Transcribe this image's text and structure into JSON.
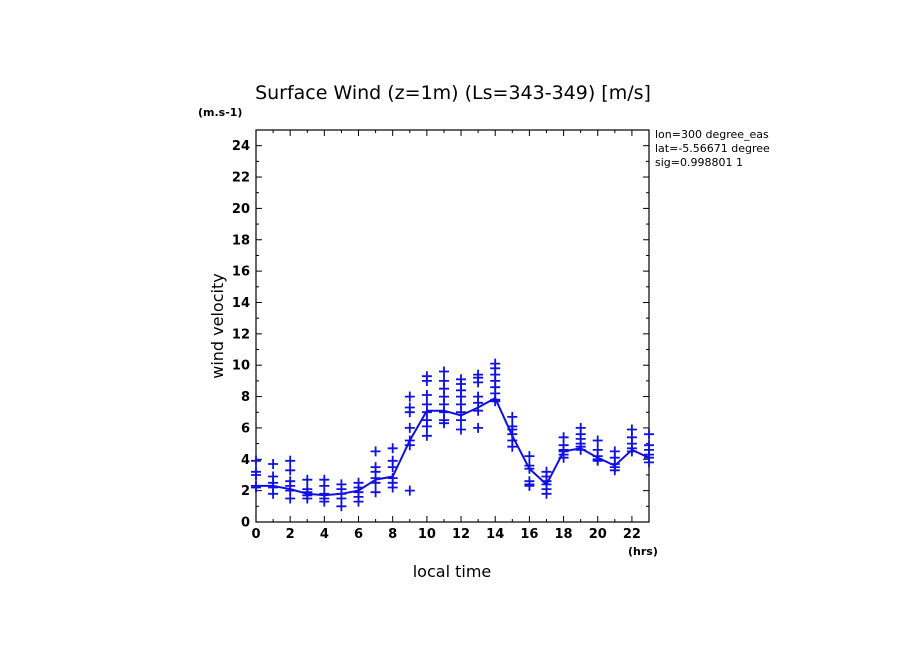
{
  "chart_data": {
    "type": "scatter",
    "title": "Surface Wind (z=1m) (Ls=343-349) [m/s]",
    "ylabel": "wind velocity",
    "y_unit": "(m.s-1)",
    "xlabel": "local time",
    "x_unit": "(hrs)",
    "xlim": [
      0,
      23
    ],
    "ylim": [
      0,
      25
    ],
    "x_ticks": [
      0,
      2,
      4,
      6,
      8,
      10,
      12,
      14,
      16,
      18,
      20,
      22
    ],
    "y_ticks": [
      0,
      2,
      4,
      6,
      8,
      10,
      12,
      14,
      16,
      18,
      20,
      22,
      24
    ],
    "grid": false,
    "annotations": [
      "lon=300 degree_eas",
      "lat=-5.56671 degree",
      "sig=0.998801 1"
    ],
    "color": "#1010e0",
    "series": [
      {
        "style": "line",
        "x": [
          0,
          1,
          2,
          3,
          4,
          5,
          6,
          7,
          8,
          9,
          10,
          11,
          12,
          13,
          14,
          15,
          16,
          17,
          18,
          19,
          20,
          21,
          22,
          23
        ],
        "values": [
          2.3,
          2.3,
          2.1,
          1.8,
          1.7,
          1.8,
          2.0,
          2.7,
          2.9,
          5.2,
          7.1,
          7.1,
          6.8,
          7.3,
          7.9,
          5.5,
          3.4,
          2.4,
          4.5,
          4.7,
          4.1,
          3.6,
          4.6,
          4.1
        ]
      },
      {
        "style": "markers",
        "marker": "+",
        "points": [
          [
            0,
            3.9
          ],
          [
            0,
            3.2
          ],
          [
            0,
            3.0
          ],
          [
            0,
            2.3
          ],
          [
            0,
            2.2
          ],
          [
            1,
            3.7
          ],
          [
            1,
            2.9
          ],
          [
            1,
            2.5
          ],
          [
            1,
            2.2
          ],
          [
            1,
            1.8
          ],
          [
            2,
            3.9
          ],
          [
            2,
            3.3
          ],
          [
            2,
            2.6
          ],
          [
            2,
            2.3
          ],
          [
            2,
            2.0
          ],
          [
            2,
            1.5
          ],
          [
            3,
            2.7
          ],
          [
            3,
            2.1
          ],
          [
            3,
            1.9
          ],
          [
            3,
            1.7
          ],
          [
            3,
            1.5
          ],
          [
            4,
            2.7
          ],
          [
            4,
            2.3
          ],
          [
            4,
            1.8
          ],
          [
            4,
            1.5
          ],
          [
            4,
            1.3
          ],
          [
            5,
            2.4
          ],
          [
            5,
            2.1
          ],
          [
            5,
            1.8
          ],
          [
            5,
            1.5
          ],
          [
            5,
            1.0
          ],
          [
            6,
            2.5
          ],
          [
            6,
            2.2
          ],
          [
            6,
            1.9
          ],
          [
            6,
            1.6
          ],
          [
            6,
            1.3
          ],
          [
            7,
            4.5
          ],
          [
            7,
            3.5
          ],
          [
            7,
            3.2
          ],
          [
            7,
            2.8
          ],
          [
            7,
            2.5
          ],
          [
            7,
            1.9
          ],
          [
            8,
            4.7
          ],
          [
            8,
            3.9
          ],
          [
            8,
            3.5
          ],
          [
            8,
            2.8
          ],
          [
            8,
            2.5
          ],
          [
            8,
            2.2
          ],
          [
            9,
            8.0
          ],
          [
            9,
            7.3
          ],
          [
            9,
            7.0
          ],
          [
            9,
            6.0
          ],
          [
            9,
            5.2
          ],
          [
            9,
            4.9
          ],
          [
            9,
            2.0
          ],
          [
            10,
            9.3
          ],
          [
            10,
            9.0
          ],
          [
            10,
            8.1
          ],
          [
            10,
            7.5
          ],
          [
            10,
            7.0
          ],
          [
            10,
            6.5
          ],
          [
            10,
            6.1
          ],
          [
            10,
            5.5
          ],
          [
            11,
            9.6
          ],
          [
            11,
            9.0
          ],
          [
            11,
            8.5
          ],
          [
            11,
            8.0
          ],
          [
            11,
            7.5
          ],
          [
            11,
            7.0
          ],
          [
            11,
            6.5
          ],
          [
            11,
            6.3
          ],
          [
            12,
            9.1
          ],
          [
            12,
            8.8
          ],
          [
            12,
            8.4
          ],
          [
            12,
            8.0
          ],
          [
            12,
            7.5
          ],
          [
            12,
            7.0
          ],
          [
            12,
            6.5
          ],
          [
            12,
            5.9
          ],
          [
            13,
            9.4
          ],
          [
            13,
            9.2
          ],
          [
            13,
            8.9
          ],
          [
            13,
            8.0
          ],
          [
            13,
            7.6
          ],
          [
            13,
            7.1
          ],
          [
            13,
            6.0
          ],
          [
            14,
            10.1
          ],
          [
            14,
            9.8
          ],
          [
            14,
            9.4
          ],
          [
            14,
            9.0
          ],
          [
            14,
            8.6
          ],
          [
            14,
            8.2
          ],
          [
            14,
            7.8
          ],
          [
            14,
            7.7
          ],
          [
            15,
            6.7
          ],
          [
            15,
            6.1
          ],
          [
            15,
            5.9
          ],
          [
            15,
            5.6
          ],
          [
            15,
            5.2
          ],
          [
            15,
            4.8
          ],
          [
            16,
            4.2
          ],
          [
            16,
            3.6
          ],
          [
            16,
            3.4
          ],
          [
            16,
            2.6
          ],
          [
            16,
            2.4
          ],
          [
            16,
            2.3
          ],
          [
            17,
            3.2
          ],
          [
            17,
            2.9
          ],
          [
            17,
            2.6
          ],
          [
            17,
            2.4
          ],
          [
            17,
            2.1
          ],
          [
            17,
            1.8
          ],
          [
            18,
            5.4
          ],
          [
            18,
            4.9
          ],
          [
            18,
            4.6
          ],
          [
            18,
            4.5
          ],
          [
            18,
            4.3
          ],
          [
            18,
            4.1
          ],
          [
            19,
            6.0
          ],
          [
            19,
            5.6
          ],
          [
            19,
            5.3
          ],
          [
            19,
            5.0
          ],
          [
            19,
            4.8
          ],
          [
            19,
            4.6
          ],
          [
            20,
            5.2
          ],
          [
            20,
            4.6
          ],
          [
            20,
            4.2
          ],
          [
            20,
            4.0
          ],
          [
            20,
            3.9
          ],
          [
            21,
            4.5
          ],
          [
            21,
            4.1
          ],
          [
            21,
            3.7
          ],
          [
            21,
            3.5
          ],
          [
            21,
            3.3
          ],
          [
            22,
            5.9
          ],
          [
            22,
            5.4
          ],
          [
            22,
            5.0
          ],
          [
            22,
            4.7
          ],
          [
            22,
            4.5
          ],
          [
            23,
            5.6
          ],
          [
            23,
            4.9
          ],
          [
            23,
            4.6
          ],
          [
            23,
            4.3
          ],
          [
            23,
            4.1
          ],
          [
            23,
            3.8
          ]
        ]
      }
    ]
  }
}
